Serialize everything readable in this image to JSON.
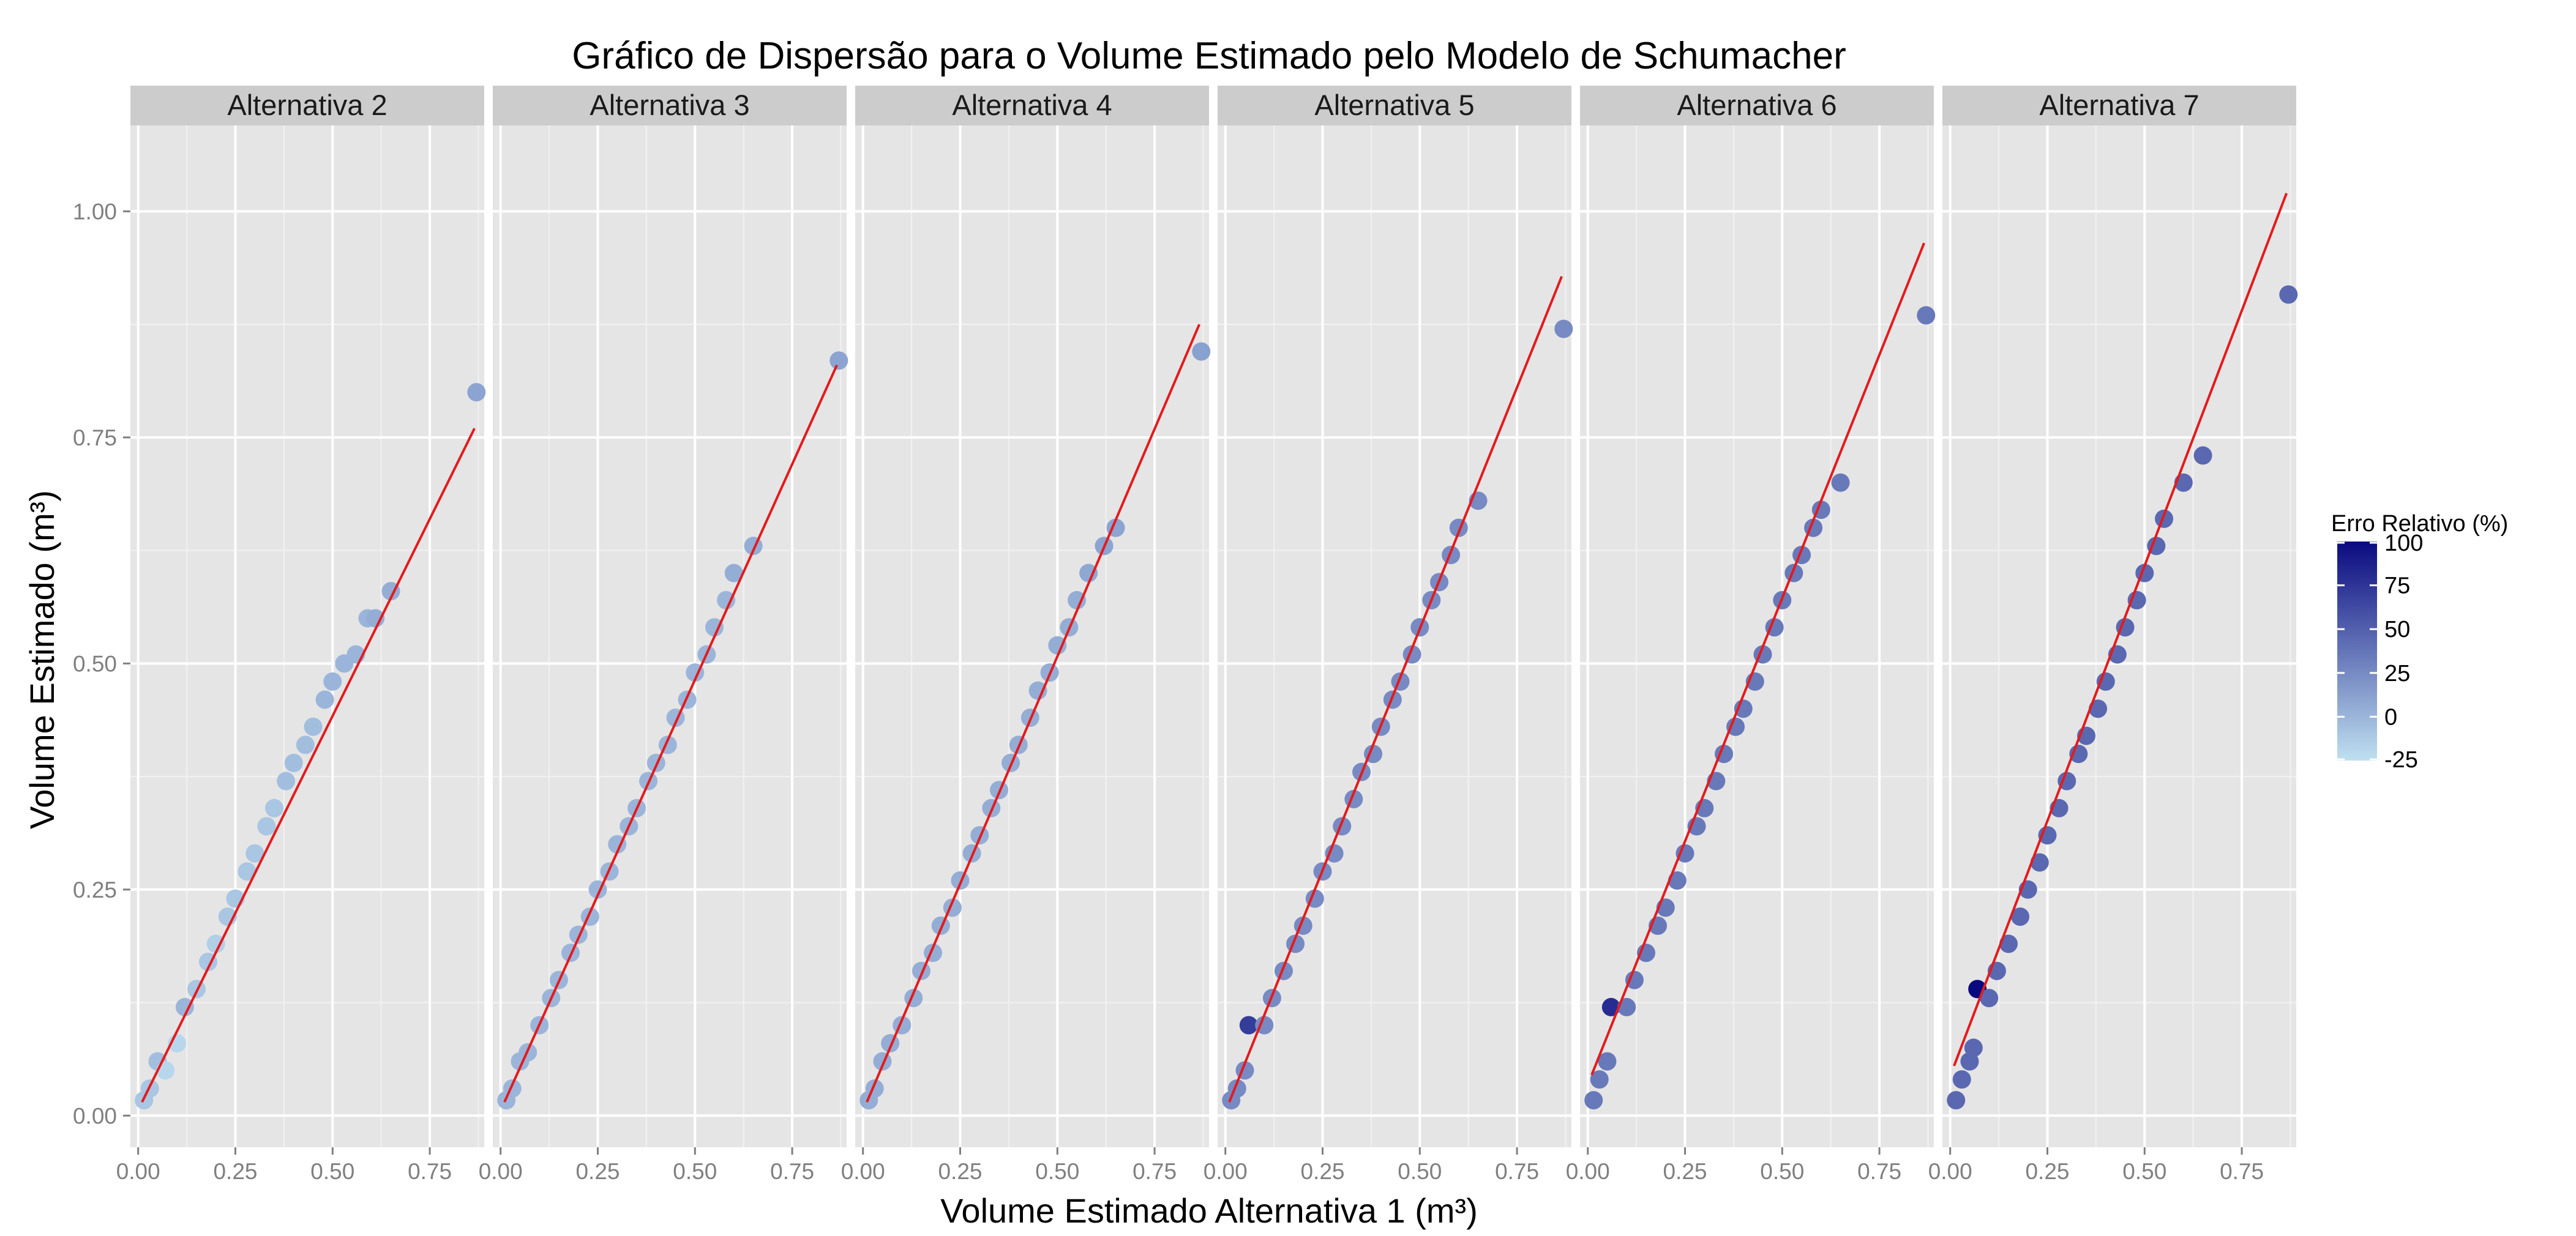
{
  "chart_data": {
    "type": "scatter",
    "title": "Gráfico de Dispersão para o Volume Estimado pelo Modelo de Schumacher",
    "xlabel": "Volume Estimado Alternativa 1 (m³)",
    "ylabel": "Volume Estimado (m³)",
    "xlim": [
      -0.02,
      0.89
    ],
    "ylim": [
      -0.035,
      1.095
    ],
    "x_ticks": [
      0.0,
      0.25,
      0.5,
      0.75
    ],
    "x_tick_labels": [
      "0.00",
      "0.25",
      "0.50",
      "0.75"
    ],
    "y_ticks": [
      0.0,
      0.25,
      0.5,
      0.75,
      1.0
    ],
    "y_tick_labels": [
      "0.00",
      "0.25",
      "0.50",
      "0.75",
      "1.00"
    ],
    "grid": true,
    "legend": {
      "title": "Erro Relativo (%)",
      "position": "right",
      "ticks": [
        100,
        75,
        50,
        25,
        0,
        -25
      ],
      "tick_labels": [
        "100",
        "75",
        "50",
        "25",
        "0",
        "-25"
      ],
      "low_color": "#bfe0f0",
      "high_color": "#0a0a80"
    },
    "colors": {
      "panel_bg": "#e5e5e5",
      "strip_bg": "#cccccc",
      "grid_major": "#ffffff",
      "fit_line": "#e41a1c"
    },
    "panels": [
      {
        "label": "Alternativa 2",
        "fit": {
          "x0": 0.01,
          "y0": 0.015,
          "x1": 0.865,
          "y1": 0.76
        },
        "points": [
          [
            0.015,
            0.017,
            -10
          ],
          [
            0.03,
            0.03,
            -10
          ],
          [
            0.05,
            0.06,
            -5
          ],
          [
            0.07,
            0.05,
            -20
          ],
          [
            0.1,
            0.08,
            -20
          ],
          [
            0.12,
            0.12,
            0
          ],
          [
            0.15,
            0.14,
            -10
          ],
          [
            0.18,
            0.17,
            -10
          ],
          [
            0.2,
            0.19,
            -15
          ],
          [
            0.23,
            0.22,
            -10
          ],
          [
            0.25,
            0.24,
            -10
          ],
          [
            0.28,
            0.27,
            -10
          ],
          [
            0.3,
            0.29,
            -10
          ],
          [
            0.33,
            0.32,
            -10
          ],
          [
            0.35,
            0.34,
            -10
          ],
          [
            0.38,
            0.37,
            -5
          ],
          [
            0.4,
            0.39,
            -5
          ],
          [
            0.43,
            0.41,
            -5
          ],
          [
            0.45,
            0.43,
            -5
          ],
          [
            0.48,
            0.46,
            0
          ],
          [
            0.5,
            0.48,
            0
          ],
          [
            0.53,
            0.5,
            0
          ],
          [
            0.56,
            0.51,
            0
          ],
          [
            0.59,
            0.55,
            0
          ],
          [
            0.61,
            0.55,
            5
          ],
          [
            0.65,
            0.58,
            5
          ],
          [
            0.87,
            0.8,
            10
          ]
        ]
      },
      {
        "label": "Alternativa 3",
        "fit": {
          "x0": 0.01,
          "y0": 0.015,
          "x1": 0.865,
          "y1": 0.83
        },
        "points": [
          [
            0.015,
            0.017,
            0
          ],
          [
            0.03,
            0.03,
            0
          ],
          [
            0.05,
            0.06,
            0
          ],
          [
            0.07,
            0.07,
            0
          ],
          [
            0.1,
            0.1,
            0
          ],
          [
            0.13,
            0.13,
            0
          ],
          [
            0.15,
            0.15,
            0
          ],
          [
            0.18,
            0.18,
            0
          ],
          [
            0.2,
            0.2,
            0
          ],
          [
            0.23,
            0.22,
            0
          ],
          [
            0.25,
            0.25,
            0
          ],
          [
            0.28,
            0.27,
            0
          ],
          [
            0.3,
            0.3,
            0
          ],
          [
            0.33,
            0.32,
            0
          ],
          [
            0.35,
            0.34,
            0
          ],
          [
            0.38,
            0.37,
            0
          ],
          [
            0.4,
            0.39,
            0
          ],
          [
            0.43,
            0.41,
            0
          ],
          [
            0.45,
            0.44,
            0
          ],
          [
            0.48,
            0.46,
            0
          ],
          [
            0.5,
            0.49,
            0
          ],
          [
            0.53,
            0.51,
            0
          ],
          [
            0.55,
            0.54,
            0
          ],
          [
            0.58,
            0.57,
            0
          ],
          [
            0.6,
            0.6,
            5
          ],
          [
            0.65,
            0.63,
            5
          ],
          [
            0.87,
            0.835,
            10
          ]
        ]
      },
      {
        "label": "Alternativa 4",
        "fit": {
          "x0": 0.01,
          "y0": 0.015,
          "x1": 0.865,
          "y1": 0.875
        },
        "points": [
          [
            0.015,
            0.017,
            5
          ],
          [
            0.03,
            0.03,
            5
          ],
          [
            0.05,
            0.06,
            5
          ],
          [
            0.07,
            0.08,
            5
          ],
          [
            0.1,
            0.1,
            5
          ],
          [
            0.13,
            0.13,
            5
          ],
          [
            0.15,
            0.16,
            5
          ],
          [
            0.18,
            0.18,
            5
          ],
          [
            0.2,
            0.21,
            5
          ],
          [
            0.23,
            0.23,
            5
          ],
          [
            0.25,
            0.26,
            5
          ],
          [
            0.28,
            0.29,
            5
          ],
          [
            0.3,
            0.31,
            5
          ],
          [
            0.33,
            0.34,
            5
          ],
          [
            0.35,
            0.36,
            5
          ],
          [
            0.38,
            0.39,
            5
          ],
          [
            0.4,
            0.41,
            5
          ],
          [
            0.43,
            0.44,
            5
          ],
          [
            0.45,
            0.47,
            5
          ],
          [
            0.48,
            0.49,
            5
          ],
          [
            0.5,
            0.52,
            5
          ],
          [
            0.53,
            0.54,
            5
          ],
          [
            0.55,
            0.57,
            5
          ],
          [
            0.58,
            0.6,
            8
          ],
          [
            0.62,
            0.63,
            10
          ],
          [
            0.65,
            0.65,
            10
          ],
          [
            0.87,
            0.845,
            12
          ]
        ]
      },
      {
        "label": "Alternativa 5",
        "fit": {
          "x0": 0.01,
          "y0": 0.015,
          "x1": 0.865,
          "y1": 0.928
        },
        "points": [
          [
            0.015,
            0.017,
            25
          ],
          [
            0.03,
            0.03,
            25
          ],
          [
            0.05,
            0.05,
            25
          ],
          [
            0.06,
            0.1,
            70
          ],
          [
            0.1,
            0.1,
            25
          ],
          [
            0.12,
            0.13,
            25
          ],
          [
            0.15,
            0.16,
            25
          ],
          [
            0.18,
            0.19,
            25
          ],
          [
            0.2,
            0.21,
            25
          ],
          [
            0.23,
            0.24,
            25
          ],
          [
            0.25,
            0.27,
            25
          ],
          [
            0.28,
            0.29,
            25
          ],
          [
            0.3,
            0.32,
            25
          ],
          [
            0.33,
            0.35,
            25
          ],
          [
            0.35,
            0.38,
            25
          ],
          [
            0.38,
            0.4,
            25
          ],
          [
            0.4,
            0.43,
            25
          ],
          [
            0.43,
            0.46,
            25
          ],
          [
            0.45,
            0.48,
            25
          ],
          [
            0.48,
            0.51,
            25
          ],
          [
            0.5,
            0.54,
            25
          ],
          [
            0.53,
            0.57,
            25
          ],
          [
            0.55,
            0.59,
            25
          ],
          [
            0.58,
            0.62,
            25
          ],
          [
            0.6,
            0.65,
            25
          ],
          [
            0.65,
            0.68,
            25
          ],
          [
            0.87,
            0.87,
            25
          ]
        ]
      },
      {
        "label": "Alternativa 6",
        "fit": {
          "x0": 0.01,
          "y0": 0.045,
          "x1": 0.865,
          "y1": 0.965
        },
        "points": [
          [
            0.015,
            0.017,
            35
          ],
          [
            0.03,
            0.04,
            35
          ],
          [
            0.05,
            0.06,
            35
          ],
          [
            0.06,
            0.12,
            80
          ],
          [
            0.1,
            0.12,
            35
          ],
          [
            0.12,
            0.15,
            35
          ],
          [
            0.15,
            0.18,
            35
          ],
          [
            0.18,
            0.21,
            35
          ],
          [
            0.2,
            0.23,
            35
          ],
          [
            0.23,
            0.26,
            35
          ],
          [
            0.25,
            0.29,
            35
          ],
          [
            0.28,
            0.32,
            35
          ],
          [
            0.3,
            0.34,
            35
          ],
          [
            0.33,
            0.37,
            35
          ],
          [
            0.35,
            0.4,
            35
          ],
          [
            0.38,
            0.43,
            35
          ],
          [
            0.4,
            0.45,
            35
          ],
          [
            0.43,
            0.48,
            35
          ],
          [
            0.45,
            0.51,
            35
          ],
          [
            0.48,
            0.54,
            35
          ],
          [
            0.5,
            0.57,
            35
          ],
          [
            0.53,
            0.6,
            35
          ],
          [
            0.55,
            0.62,
            35
          ],
          [
            0.58,
            0.65,
            35
          ],
          [
            0.6,
            0.67,
            35
          ],
          [
            0.65,
            0.7,
            35
          ],
          [
            0.87,
            0.885,
            35
          ]
        ]
      },
      {
        "label": "Alternativa 7",
        "fit": {
          "x0": 0.01,
          "y0": 0.055,
          "x1": 0.865,
          "y1": 1.02
        },
        "points": [
          [
            0.015,
            0.017,
            45
          ],
          [
            0.03,
            0.04,
            45
          ],
          [
            0.05,
            0.06,
            45
          ],
          [
            0.06,
            0.075,
            45
          ],
          [
            0.07,
            0.14,
            100
          ],
          [
            0.1,
            0.13,
            45
          ],
          [
            0.12,
            0.16,
            45
          ],
          [
            0.15,
            0.19,
            45
          ],
          [
            0.18,
            0.22,
            45
          ],
          [
            0.2,
            0.25,
            45
          ],
          [
            0.23,
            0.28,
            45
          ],
          [
            0.25,
            0.31,
            45
          ],
          [
            0.28,
            0.34,
            45
          ],
          [
            0.3,
            0.37,
            45
          ],
          [
            0.33,
            0.4,
            45
          ],
          [
            0.35,
            0.42,
            45
          ],
          [
            0.38,
            0.45,
            45
          ],
          [
            0.4,
            0.48,
            45
          ],
          [
            0.43,
            0.51,
            45
          ],
          [
            0.45,
            0.54,
            45
          ],
          [
            0.48,
            0.57,
            45
          ],
          [
            0.5,
            0.6,
            45
          ],
          [
            0.53,
            0.63,
            45
          ],
          [
            0.55,
            0.66,
            45
          ],
          [
            0.6,
            0.7,
            45
          ],
          [
            0.65,
            0.73,
            45
          ],
          [
            0.87,
            0.908,
            45
          ]
        ]
      }
    ]
  }
}
